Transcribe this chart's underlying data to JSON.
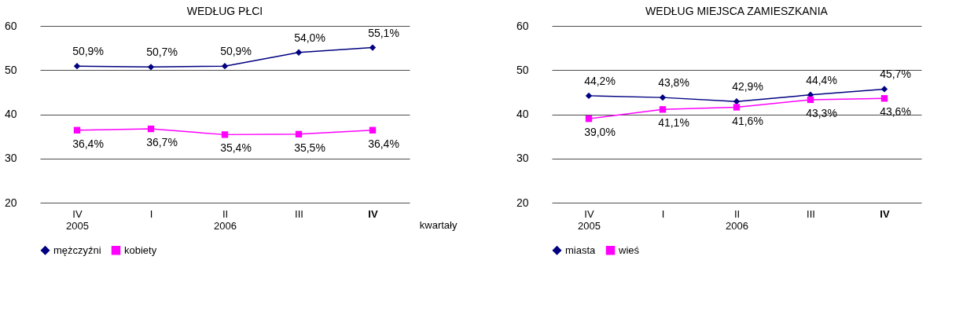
{
  "chart_data": [
    {
      "type": "line",
      "title": "WEDŁUG PŁCI",
      "xlabel": "kwartały",
      "categories": [
        "IV\n2005",
        "I",
        "II\n2006",
        "III",
        "IV"
      ],
      "ylim": [
        20,
        60
      ],
      "yticks": [
        20,
        30,
        40,
        50,
        60
      ],
      "grid": "y",
      "legend": "bottom",
      "series": [
        {
          "name": "mężczyźni",
          "color": "#000080",
          "marker": "diamond",
          "values": [
            50.9,
            50.7,
            50.9,
            54.0,
            55.1
          ],
          "value_labels": [
            "50,9%",
            "50,7%",
            "50,9%",
            "54,0%",
            "55,1%"
          ]
        },
        {
          "name": "kobiety",
          "color": "#ff00ff",
          "marker": "square",
          "values": [
            36.4,
            36.7,
            35.4,
            35.5,
            36.4
          ],
          "value_labels": [
            "36,4%",
            "36,7%",
            "35,4%",
            "35,5%",
            "36,4%"
          ]
        }
      ]
    },
    {
      "type": "line",
      "title": "WEDŁUG MIEJSCA ZAMIESZKANIA",
      "categories": [
        "IV\n2005",
        "I",
        "II\n2006",
        "III",
        "IV"
      ],
      "ylim": [
        20,
        60
      ],
      "yticks": [
        20,
        30,
        40,
        50,
        60
      ],
      "grid": "y",
      "legend": "bottom",
      "series": [
        {
          "name": "miasta",
          "color": "#000080",
          "marker": "diamond",
          "values": [
            44.2,
            43.8,
            42.9,
            44.4,
            45.7
          ],
          "value_labels": [
            "44,2%",
            "43,8%",
            "42,9%",
            "44,4%",
            "45,7%"
          ]
        },
        {
          "name": "wieś",
          "color": "#ff00ff",
          "marker": "square",
          "values": [
            39.0,
            41.1,
            41.6,
            43.3,
            43.6
          ],
          "value_labels": [
            "39,0%",
            "41,1%",
            "41,6%",
            "43,3%",
            "43,6%"
          ]
        }
      ]
    }
  ]
}
